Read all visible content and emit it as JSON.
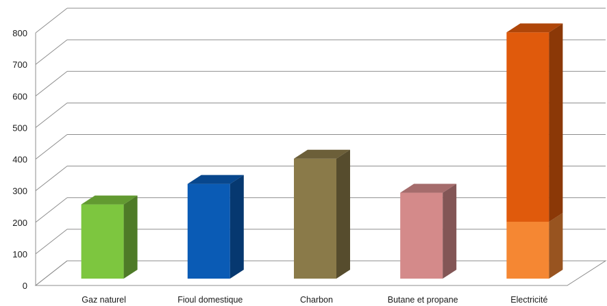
{
  "chart_data": {
    "type": "bar",
    "title": "",
    "xlabel": "",
    "ylabel": "",
    "ylim": [
      0,
      800
    ],
    "ytick_step": 100,
    "grid": true,
    "style": "3d-column",
    "categories": [
      "Gaz naturel",
      "Fioul domestique",
      "Charbon",
      "Butane et propane",
      "Electricité"
    ],
    "values": [
      235,
      300,
      380,
      272,
      780
    ],
    "segments": [
      [
        {
          "value": 235,
          "color": "#7DC63F"
        }
      ],
      [
        {
          "value": 300,
          "color": "#0A5BB5"
        }
      ],
      [
        {
          "value": 380,
          "color": "#8A7A49"
        }
      ],
      [
        {
          "value": 272,
          "color": "#D48A8A"
        }
      ],
      [
        {
          "value": 180,
          "color": "#F58733"
        },
        {
          "value": 600,
          "color": "#E05A0C"
        }
      ]
    ]
  }
}
